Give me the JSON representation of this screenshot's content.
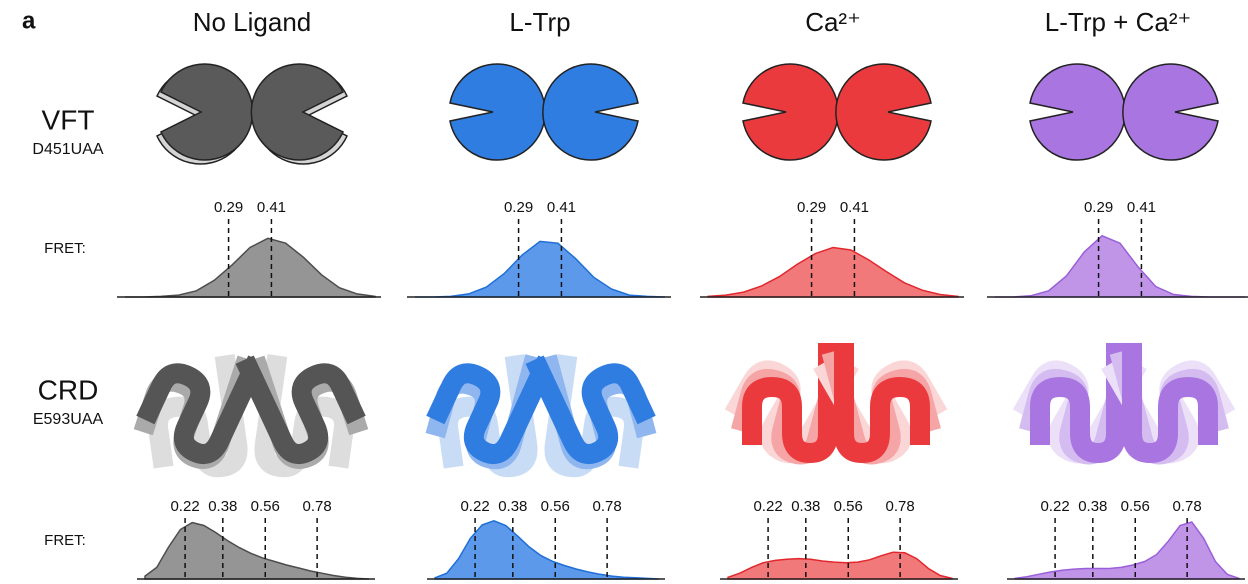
{
  "panel_label": "a",
  "columns": [
    "No Ligand",
    "L-Trp",
    "Ca²⁺",
    "L-Trp + Ca²⁺"
  ],
  "rows": [
    {
      "label": "VFT",
      "sublabel": "D451UAA",
      "fret_label": "FRET:"
    },
    {
      "label": "CRD",
      "sublabel": "E593UAA",
      "fret_label": "FRET:"
    }
  ],
  "chart_data": [
    {
      "type": "area",
      "color": "#4d4d4d",
      "fill": "#8a8a8a",
      "xlim": [
        0,
        0.7
      ],
      "ylim": [
        0,
        1.1
      ],
      "markers": [
        0.29,
        0.41
      ],
      "x": [
        0,
        0.05,
        0.1,
        0.15,
        0.2,
        0.25,
        0.3,
        0.35,
        0.4,
        0.45,
        0.5,
        0.55,
        0.6,
        0.65,
        0.7
      ],
      "values": [
        0,
        0,
        0.01,
        0.03,
        0.1,
        0.27,
        0.52,
        0.8,
        0.95,
        0.87,
        0.64,
        0.36,
        0.15,
        0.05,
        0.01
      ]
    },
    {
      "type": "area",
      "color": "#1f6fd6",
      "fill": "#4a8ee8",
      "xlim": [
        0,
        0.7
      ],
      "ylim": [
        0,
        1.1
      ],
      "markers": [
        0.29,
        0.41
      ],
      "x": [
        0,
        0.05,
        0.1,
        0.15,
        0.2,
        0.25,
        0.3,
        0.35,
        0.4,
        0.45,
        0.5,
        0.55,
        0.6,
        0.65,
        0.7
      ],
      "values": [
        0,
        0,
        0.01,
        0.05,
        0.16,
        0.38,
        0.68,
        0.9,
        0.87,
        0.62,
        0.32,
        0.13,
        0.03,
        0.01,
        0
      ]
    },
    {
      "type": "area",
      "color": "#e0282e",
      "fill": "#ef6a6c",
      "xlim": [
        0,
        0.7
      ],
      "ylim": [
        0,
        1.1
      ],
      "markers": [
        0.29,
        0.41
      ],
      "x": [
        0,
        0.05,
        0.1,
        0.15,
        0.2,
        0.25,
        0.3,
        0.35,
        0.4,
        0.45,
        0.5,
        0.55,
        0.6,
        0.65,
        0.7
      ],
      "values": [
        0.01,
        0.03,
        0.08,
        0.18,
        0.33,
        0.53,
        0.7,
        0.8,
        0.76,
        0.6,
        0.41,
        0.23,
        0.11,
        0.04,
        0.01
      ]
    },
    {
      "type": "area",
      "color": "#9a5fd8",
      "fill": "#b98ae6",
      "xlim": [
        0,
        0.7
      ],
      "ylim": [
        0,
        1.1
      ],
      "markers": [
        0.29,
        0.41
      ],
      "x": [
        0,
        0.05,
        0.1,
        0.15,
        0.2,
        0.25,
        0.3,
        0.35,
        0.4,
        0.45,
        0.5,
        0.55,
        0.6,
        0.65,
        0.7
      ],
      "values": [
        0,
        0,
        0.02,
        0.1,
        0.34,
        0.73,
        0.99,
        0.87,
        0.49,
        0.17,
        0.04,
        0.01,
        0,
        0,
        0
      ]
    },
    {
      "type": "area",
      "color": "#4d4d4d",
      "fill": "#8a8a8a",
      "xlim": [
        0.05,
        1.0
      ],
      "ylim": [
        0,
        1.1
      ],
      "markers": [
        0.22,
        0.38,
        0.56,
        0.78
      ],
      "x": [
        0.05,
        0.1,
        0.15,
        0.2,
        0.25,
        0.3,
        0.35,
        0.4,
        0.45,
        0.5,
        0.55,
        0.6,
        0.65,
        0.7,
        0.75,
        0.8,
        0.85,
        0.9,
        0.95,
        1.0
      ],
      "values": [
        0.05,
        0.2,
        0.55,
        0.85,
        0.97,
        0.92,
        0.8,
        0.66,
        0.54,
        0.44,
        0.36,
        0.3,
        0.24,
        0.19,
        0.14,
        0.1,
        0.06,
        0.03,
        0.01,
        0
      ]
    },
    {
      "type": "area",
      "color": "#1f6fd6",
      "fill": "#4a8ee8",
      "xlim": [
        0.05,
        1.0
      ],
      "ylim": [
        0,
        1.1
      ],
      "markers": [
        0.22,
        0.38,
        0.56,
        0.78
      ],
      "x": [
        0.05,
        0.1,
        0.15,
        0.2,
        0.25,
        0.3,
        0.35,
        0.4,
        0.45,
        0.5,
        0.55,
        0.6,
        0.65,
        0.7,
        0.75,
        0.8,
        0.85,
        0.9,
        0.95,
        1.0
      ],
      "values": [
        0.02,
        0.1,
        0.35,
        0.7,
        0.93,
        1.0,
        0.92,
        0.74,
        0.55,
        0.4,
        0.3,
        0.23,
        0.17,
        0.12,
        0.08,
        0.05,
        0.03,
        0.02,
        0.01,
        0
      ]
    },
    {
      "type": "area",
      "color": "#e0282e",
      "fill": "#ef6a6c",
      "xlim": [
        0.05,
        1.0
      ],
      "ylim": [
        0,
        1.1
      ],
      "markers": [
        0.22,
        0.38,
        0.56,
        0.78
      ],
      "x": [
        0.05,
        0.1,
        0.15,
        0.2,
        0.25,
        0.3,
        0.35,
        0.4,
        0.45,
        0.5,
        0.55,
        0.6,
        0.65,
        0.7,
        0.75,
        0.8,
        0.85,
        0.9,
        0.95,
        1.0
      ],
      "values": [
        0.03,
        0.1,
        0.2,
        0.28,
        0.32,
        0.34,
        0.35,
        0.34,
        0.31,
        0.29,
        0.28,
        0.29,
        0.33,
        0.4,
        0.46,
        0.45,
        0.35,
        0.18,
        0.06,
        0.01
      ]
    },
    {
      "type": "area",
      "color": "#9a5fd8",
      "fill": "#b98ae6",
      "xlim": [
        0.05,
        1.0
      ],
      "ylim": [
        0,
        1.1
      ],
      "markers": [
        0.22,
        0.38,
        0.56,
        0.78
      ],
      "x": [
        0.05,
        0.1,
        0.15,
        0.2,
        0.25,
        0.3,
        0.35,
        0.4,
        0.45,
        0.5,
        0.55,
        0.6,
        0.65,
        0.7,
        0.75,
        0.8,
        0.85,
        0.9,
        0.95,
        1.0
      ],
      "values": [
        0.01,
        0.04,
        0.08,
        0.12,
        0.15,
        0.17,
        0.18,
        0.18,
        0.18,
        0.2,
        0.24,
        0.3,
        0.42,
        0.65,
        0.92,
        0.98,
        0.7,
        0.3,
        0.08,
        0.01
      ]
    }
  ]
}
